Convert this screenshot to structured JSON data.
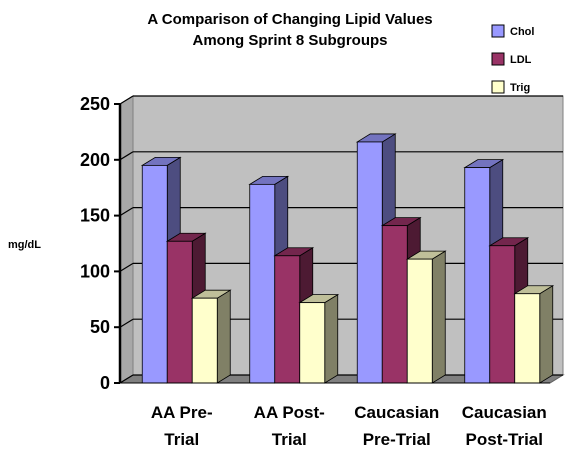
{
  "chart_data": {
    "type": "bar",
    "title_lines": [
      "A Comparison of Changing Lipid Values",
      "Among Sprint 8 Subgroups"
    ],
    "ylabel": "mg/dL",
    "xlabel": "",
    "ylim": [
      0,
      250
    ],
    "yticks": [
      0,
      50,
      100,
      150,
      200,
      250
    ],
    "categories": [
      [
        "AA Pre-",
        "Trial"
      ],
      [
        "AA Post-",
        "Trial"
      ],
      [
        "Caucasian",
        "Pre-Trial"
      ],
      [
        "Caucasian",
        "Post-Trial"
      ]
    ],
    "series": [
      {
        "name": "Chol",
        "values": [
          195,
          178,
          216,
          193
        ]
      },
      {
        "name": "LDL",
        "values": [
          127,
          114,
          141,
          123
        ]
      },
      {
        "name": "Trig",
        "values": [
          76,
          72,
          111,
          80
        ]
      }
    ],
    "grid": true,
    "legend_position": "top-right",
    "style": "3d-clustered"
  },
  "colors": {
    "Chol": "#9999ff",
    "LDL": "#993366",
    "Trig": "#ffffcc",
    "plot_background": "#c0c0c0",
    "gridline": "#000000"
  }
}
